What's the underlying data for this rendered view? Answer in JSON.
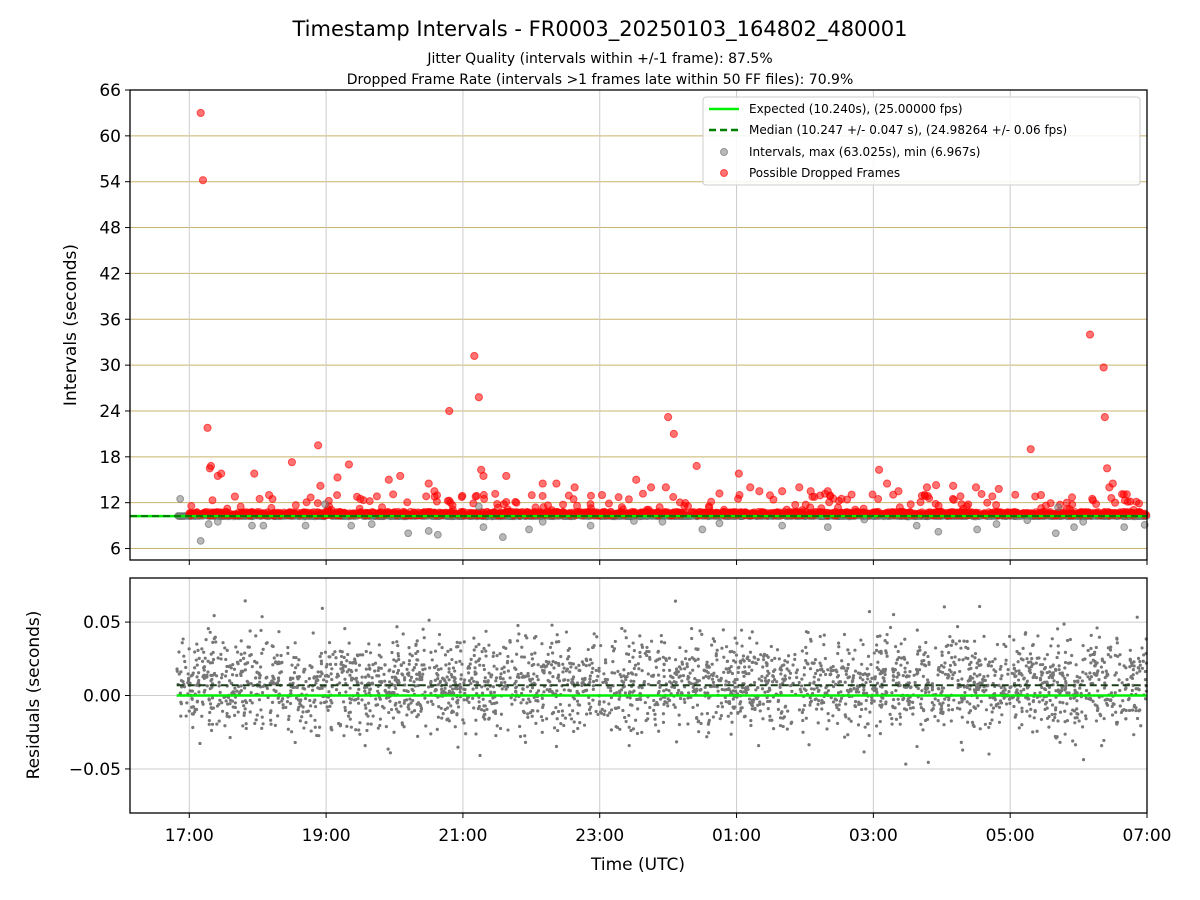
{
  "header": {
    "title": "Timestamp Intervals - FR0003_20250103_164802_480001",
    "subtitle_line1": "Jitter Quality (intervals within +/-1 frame): 87.5%",
    "subtitle_line2": "Dropped Frame Rate (intervals >1 frames late within 50 FF files): 70.9%"
  },
  "chart_data": [
    {
      "type": "scatter",
      "ylabel": "Intervals (seconds)",
      "xlim": [
        "16:08",
        "07:00"
      ],
      "ylim": [
        4.5,
        66
      ],
      "yticks": [
        6,
        12,
        18,
        24,
        30,
        36,
        42,
        48,
        54,
        60,
        66
      ],
      "grid": true,
      "legend_position": "top-right",
      "legend": [
        {
          "label": "Expected (10.240s), (25.00000 fps)",
          "color": "#00ee00",
          "style": "solid"
        },
        {
          "label": "Median (10.247 +/- 0.047 s), (24.98264 +/- 0.06 fps)",
          "color": "#008000",
          "style": "dashed"
        },
        {
          "label": "Intervals, max (63.025s), min (6.967s)",
          "color": "#808080",
          "style": "marker"
        },
        {
          "label": "Possible Dropped Frames",
          "color": "#ff0000",
          "style": "marker"
        }
      ],
      "expected_interval": 10.24,
      "median_interval": 10.247,
      "interval_max": 63.025,
      "interval_min": 6.967,
      "series": [
        {
          "name": "Intervals, max (63.025s), min (6.967s)",
          "color": "#808080",
          "x": [
            "16:52",
            "17:10",
            "17:17",
            "17:25",
            "17:55",
            "18:05",
            "18:42",
            "18:59",
            "19:22",
            "19:40",
            "20:12",
            "20:30",
            "20:38",
            "21:14",
            "21:18",
            "21:35",
            "21:58",
            "22:10",
            "22:52",
            "23:30",
            "23:55",
            "24:30",
            "24:45",
            "25:40",
            "26:20",
            "26:52",
            "27:38",
            "27:57",
            "28:31",
            "28:48",
            "29:15",
            "29:40",
            "29:42",
            "29:56",
            "30:04",
            "30:40",
            "30:58"
          ],
          "y": [
            12.5,
            7.0,
            9.2,
            9.5,
            9.0,
            9.0,
            9.0,
            11.8,
            9.0,
            9.2,
            8.0,
            8.3,
            7.8,
            11.5,
            8.8,
            7.5,
            8.5,
            9.5,
            9.0,
            9.6,
            9.5,
            8.5,
            9.3,
            9.0,
            8.8,
            9.8,
            9.0,
            8.2,
            8.5,
            9.2,
            9.7,
            8.0,
            11.4,
            8.8,
            9.5,
            8.8,
            9.1
          ]
        },
        {
          "name": "Possible Dropped Frames",
          "color": "#ff0000",
          "x": [
            "17:10",
            "17:12",
            "17:16",
            "17:18",
            "17:19",
            "17:25",
            "17:28",
            "17:40",
            "17:57",
            "18:10",
            "18:30",
            "18:53",
            "18:55",
            "19:10",
            "19:20",
            "19:30",
            "19:55",
            "20:05",
            "20:30",
            "20:35",
            "20:48",
            "21:10",
            "21:14",
            "21:16",
            "21:18",
            "21:38",
            "22:10",
            "22:22",
            "22:38",
            "23:02",
            "23:32",
            "23:45",
            "23:58",
            "24:00",
            "24:05",
            "24:25",
            "24:45",
            "25:02",
            "25:12",
            "25:20",
            "25:40",
            "25:55",
            "26:05",
            "26:20",
            "26:32",
            "27:05",
            "27:12",
            "27:22",
            "27:47",
            "27:55",
            "28:10",
            "28:30",
            "28:50",
            "29:18",
            "29:27",
            "30:10",
            "30:12",
            "30:22",
            "30:23",
            "30:25",
            "30:27",
            "30:30",
            "30:32"
          ],
          "y": [
            63.0,
            54.2,
            21.8,
            16.5,
            16.8,
            15.5,
            15.8,
            12.8,
            15.8,
            13.0,
            17.3,
            19.5,
            14.2,
            15.3,
            17.0,
            12.5,
            15.0,
            15.5,
            14.5,
            13.5,
            24.0,
            31.2,
            25.8,
            16.3,
            15.5,
            15.5,
            14.5,
            14.5,
            14.0,
            13.0,
            15.0,
            14.0,
            14.0,
            23.2,
            21.0,
            16.8,
            13.2,
            15.8,
            14.0,
            13.5,
            13.5,
            14.0,
            13.5,
            13.5,
            12.5,
            16.3,
            14.5,
            13.5,
            14.0,
            14.3,
            14.2,
            14.0,
            13.8,
            19.0,
            13.0,
            34.0,
            12.5,
            29.7,
            23.2,
            16.5,
            14.0,
            14.5,
            12.0
          ]
        }
      ]
    },
    {
      "type": "scatter",
      "xlabel": "Time (UTC)",
      "ylabel": "Residuals (seconds)",
      "xlim": [
        "16:08",
        "07:00"
      ],
      "ylim": [
        -0.08,
        0.08
      ],
      "xticks": [
        "17:00",
        "19:00",
        "21:00",
        "23:00",
        "01:00",
        "03:00",
        "05:00",
        "07:00"
      ],
      "yticks": [
        -0.05,
        0.0,
        0.05
      ],
      "ytick_labels": [
        "−0.05",
        "0.00",
        "0.05"
      ],
      "grid": true,
      "expected_residual": 0.0,
      "median_residual": 0.007,
      "residual_noise_sd": 0.016,
      "series": [
        {
          "name": "Residuals",
          "color": "#808080"
        }
      ]
    }
  ]
}
